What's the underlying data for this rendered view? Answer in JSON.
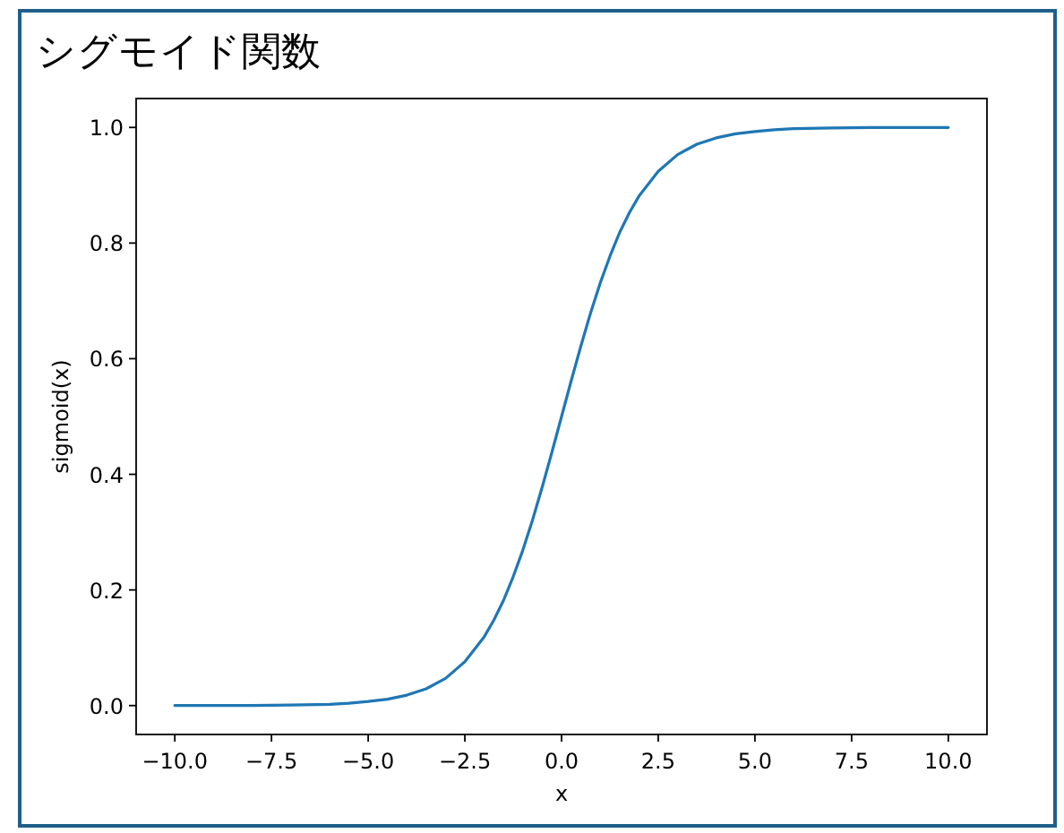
{
  "chart_data": {
    "type": "line",
    "title": "シグモイド関数",
    "xlabel": "x",
    "ylabel": "sigmoid(x)",
    "x": [
      -10,
      -9,
      -8,
      -7,
      -6,
      -5.5,
      -5,
      -4.5,
      -4,
      -3.5,
      -3,
      -2.5,
      -2,
      -1.75,
      -1.5,
      -1.25,
      -1,
      -0.75,
      -0.5,
      -0.25,
      0,
      0.25,
      0.5,
      0.75,
      1,
      1.25,
      1.5,
      1.75,
      2,
      2.5,
      3,
      3.5,
      4,
      4.5,
      5,
      5.5,
      6,
      7,
      8,
      9,
      10
    ],
    "values": [
      0.0,
      0.0,
      0.0,
      0.001,
      0.002,
      0.004,
      0.007,
      0.011,
      0.018,
      0.029,
      0.047,
      0.076,
      0.119,
      0.148,
      0.182,
      0.223,
      0.269,
      0.321,
      0.378,
      0.438,
      0.5,
      0.562,
      0.622,
      0.679,
      0.731,
      0.777,
      0.818,
      0.852,
      0.881,
      0.924,
      0.953,
      0.971,
      0.982,
      0.989,
      0.993,
      0.996,
      0.998,
      0.999,
      1.0,
      1.0,
      1.0
    ],
    "color": "#1f77b4",
    "xlim": [
      -11,
      11
    ],
    "ylim": [
      -0.05,
      1.05
    ],
    "xticks": [
      {
        "value": -10,
        "label": "−10.0"
      },
      {
        "value": -7.5,
        "label": "−7.5"
      },
      {
        "value": -5,
        "label": "−5.0"
      },
      {
        "value": -2.5,
        "label": "−2.5"
      },
      {
        "value": 0,
        "label": "0.0"
      },
      {
        "value": 2.5,
        "label": "2.5"
      },
      {
        "value": 5,
        "label": "5.0"
      },
      {
        "value": 7.5,
        "label": "7.5"
      },
      {
        "value": 10,
        "label": "10.0"
      }
    ],
    "yticks": [
      {
        "value": 0,
        "label": "0.0"
      },
      {
        "value": 0.2,
        "label": "0.2"
      },
      {
        "value": 0.4,
        "label": "0.4"
      },
      {
        "value": 0.6,
        "label": "0.6"
      },
      {
        "value": 0.8,
        "label": "0.8"
      },
      {
        "value": 1,
        "label": "1.0"
      }
    ]
  }
}
